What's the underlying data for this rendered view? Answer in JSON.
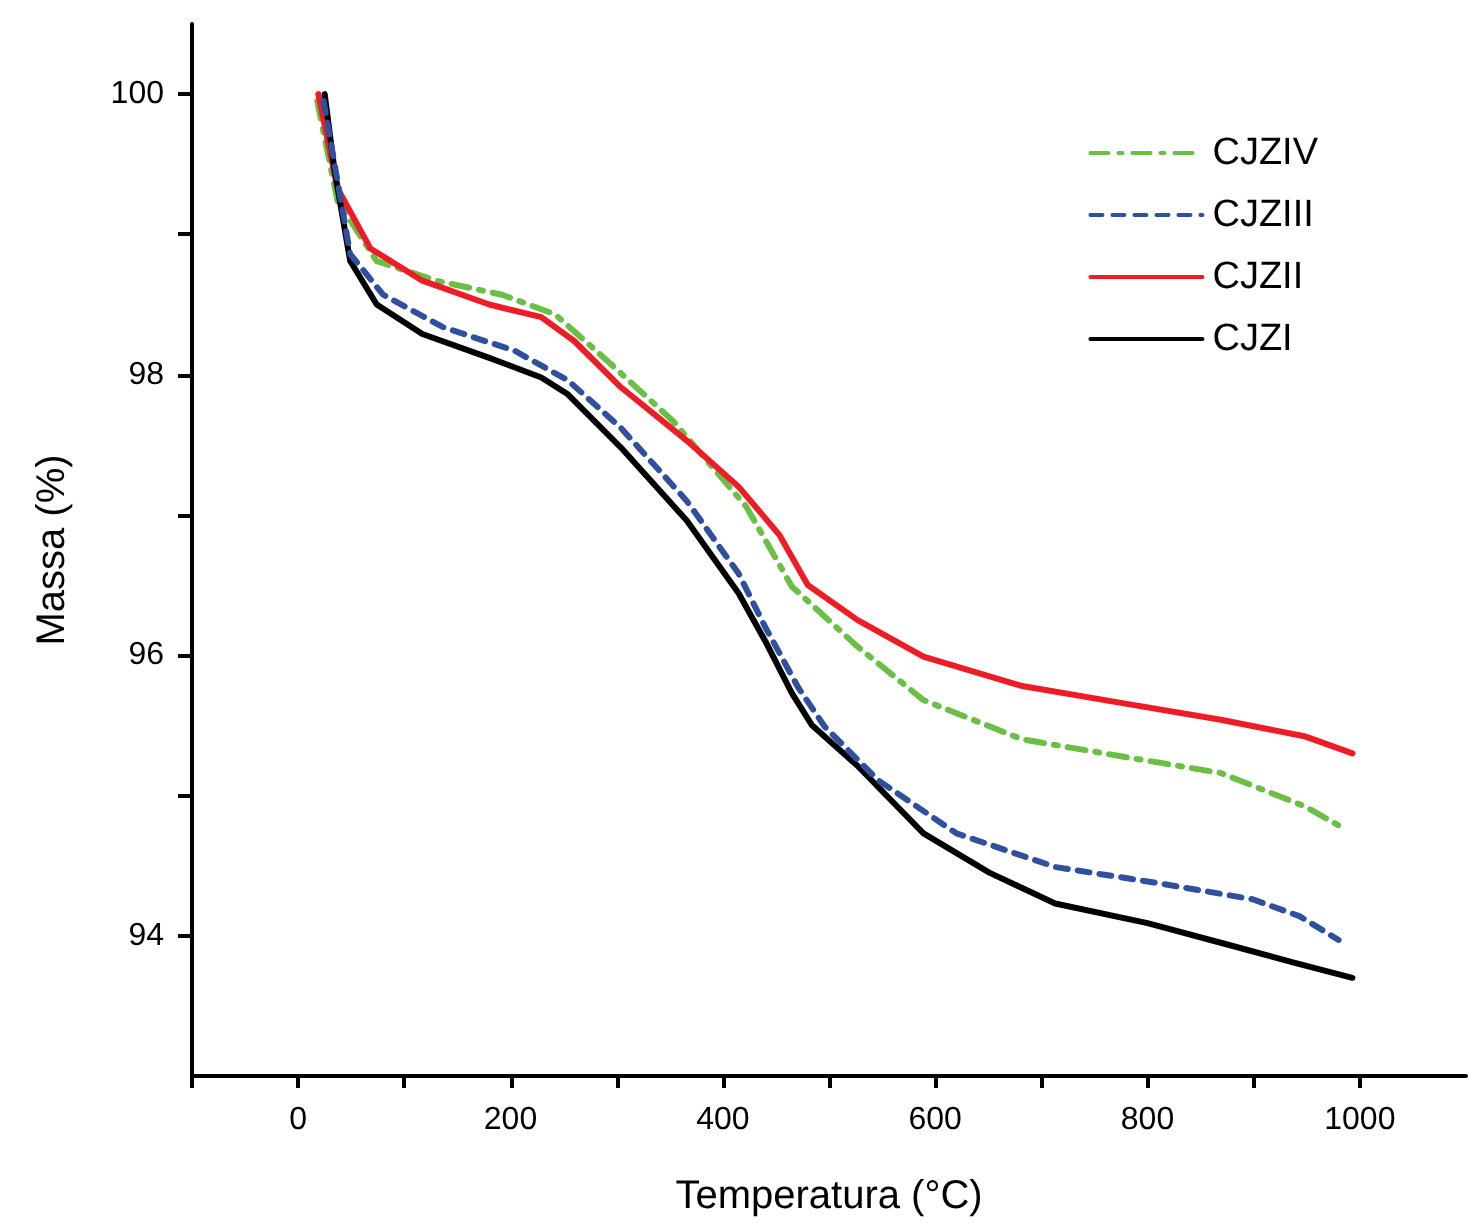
{
  "chart_data": {
    "type": "line",
    "xlabel": "Temperatura (°C)",
    "ylabel": "Massa (%)",
    "xlim": [
      -100,
      1100
    ],
    "xticks": [
      {
        "value": -100,
        "label": null
      },
      0,
      {
        "value": 100,
        "label": null
      },
      200,
      {
        "value": 300,
        "label": null
      },
      400,
      {
        "value": 500,
        "label": null
      },
      600,
      {
        "value": 700,
        "label": null
      },
      800,
      {
        "value": 900,
        "label": null
      },
      1000
    ],
    "ylim": [
      93,
      100.5
    ],
    "yticks": [
      94,
      {
        "value": 95,
        "label": null
      },
      96,
      {
        "value": 97,
        "label": null
      },
      98,
      {
        "value": 99,
        "label": null
      },
      100
    ],
    "grid": false,
    "legend": "top right",
    "marker": "none",
    "series": [
      {
        "name": "CJZIV",
        "color": "#6abf45",
        "line_style": "dashdot",
        "x": [
          18,
          37,
          74,
          130,
          192,
          242,
          291,
          353,
          422,
          465,
          527,
          589,
          682,
          775,
          869,
          949,
          986
        ],
        "values": [
          99.95,
          99.24,
          98.81,
          98.67,
          98.57,
          98.43,
          98.1,
          97.67,
          97.06,
          96.49,
          96.06,
          95.68,
          95.4,
          95.28,
          95.16,
          94.92,
          94.76
        ]
      },
      {
        "name": "CJZIII",
        "color": "#2f4f9f",
        "line_style": "dashed",
        "x": [
          24,
          49,
          80,
          136,
          204,
          254,
          304,
          366,
          415,
          440,
          471,
          496,
          546,
          620,
          713,
          806,
          899,
          943,
          980
        ],
        "values": [
          99.95,
          98.86,
          98.57,
          98.34,
          98.17,
          97.96,
          97.62,
          97.1,
          96.58,
          96.2,
          95.77,
          95.49,
          95.11,
          94.73,
          94.49,
          94.38,
          94.26,
          94.14,
          93.97
        ]
      },
      {
        "name": "CJZII",
        "color": "#ee1c24",
        "line_style": "solid",
        "x": [
          19,
          37,
          68,
          117,
          180,
          229,
          260,
          304,
          366,
          415,
          453,
          480,
          527,
          589,
          682,
          775,
          869,
          949,
          993
        ],
        "values": [
          100.0,
          99.33,
          98.9,
          98.67,
          98.5,
          98.41,
          98.24,
          97.91,
          97.53,
          97.2,
          96.86,
          96.5,
          96.25,
          95.99,
          95.78,
          95.66,
          95.54,
          95.42,
          95.3
        ]
      },
      {
        "name": "CJZI",
        "color": "#000000",
        "line_style": "solid",
        "x": [
          25,
          34,
          49,
          74,
          117,
          180,
          229,
          254,
          304,
          366,
          415,
          440,
          465,
          484,
          527,
          589,
          651,
          713,
          800,
          869,
          937,
          993
        ],
        "values": [
          100.0,
          99.47,
          98.81,
          98.5,
          98.29,
          98.12,
          97.98,
          97.86,
          97.48,
          96.96,
          96.44,
          96.1,
          95.73,
          95.5,
          95.21,
          94.73,
          94.45,
          94.23,
          94.09,
          93.95,
          93.81,
          93.7
        ]
      }
    ]
  }
}
